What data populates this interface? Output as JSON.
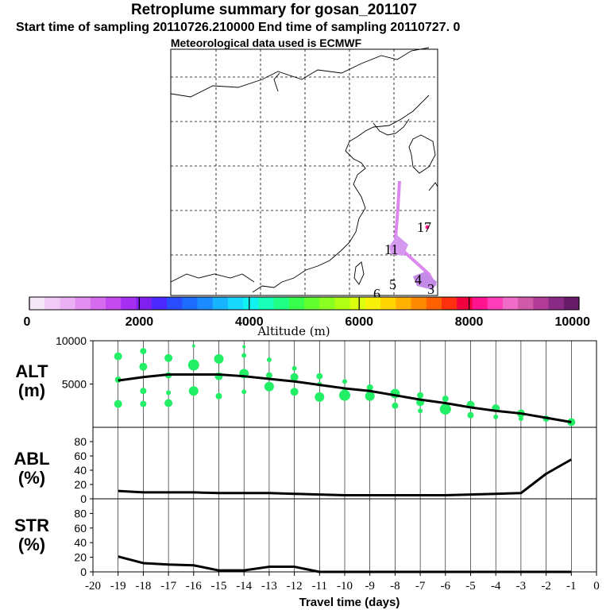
{
  "header": {
    "title": "Retroplume summary for gosan_201107",
    "sampling_line": "Start time of sampling 20110726.210000     End time of sampling 20110727.     0",
    "met_line": "Meteorological data used is ECMWF"
  },
  "colors": {
    "plume": "#dd88ee",
    "dots": "#22ee66",
    "line": "#000000"
  },
  "colorbar": {
    "label": "Altitude (m)",
    "tick_labels": [
      "0",
      "2000",
      "4000",
      "6000",
      "8000",
      "10000"
    ],
    "colors": [
      "#f4e6f7",
      "#f1caf7",
      "#ecb0f4",
      "#e28ef0",
      "#d76bef",
      "#c44af0",
      "#a52ef3",
      "#7f20f0",
      "#4a28ff",
      "#2a4cff",
      "#1d6cff",
      "#1a8cff",
      "#18b4ff",
      "#16d8ff",
      "#10f2f0",
      "#18ffb8",
      "#20ff86",
      "#38ff4c",
      "#64ff2e",
      "#8cff22",
      "#b2ff16",
      "#dcff10",
      "#f8f20a",
      "#ffd400",
      "#ffb000",
      "#ff8a00",
      "#ff6000",
      "#ff3010",
      "#f20040",
      "#ff1490",
      "#ff3cba",
      "#f06cc6",
      "#d05aa8",
      "#b03c98",
      "#8a2c86",
      "#661c66"
    ]
  },
  "map": {
    "labels": [
      "17",
      "11",
      "5",
      "6",
      "4",
      "3"
    ]
  },
  "chart_data": [
    {
      "type": "line",
      "panel": "ALT",
      "ylabel": "ALT\n(m)",
      "ylim": [
        0,
        10000
      ],
      "xlim": [
        -20,
        0
      ],
      "tick_labels": [
        "10000",
        "5000"
      ],
      "x": [
        -19,
        -18,
        -17,
        -16,
        -15,
        -14,
        -13,
        -12,
        -11,
        -10,
        -9,
        -8,
        -7,
        -6,
        -5,
        -4,
        -3,
        -2,
        -1
      ],
      "series": [
        {
          "name": "mean altitude",
          "values": [
            5400,
            5800,
            6100,
            6100,
            6100,
            5900,
            5600,
            5300,
            4900,
            4500,
            4200,
            3700,
            3200,
            2800,
            2300,
            1900,
            1600,
            1100,
            600
          ]
        }
      ],
      "clusters": [
        {
          "x": -19,
          "y": 8200,
          "s": 5
        },
        {
          "x": -19,
          "y": 5500,
          "s": 4
        },
        {
          "x": -19,
          "y": 2700,
          "s": 5
        },
        {
          "x": -18,
          "y": 8800,
          "s": 4
        },
        {
          "x": -18,
          "y": 7000,
          "s": 5
        },
        {
          "x": -18,
          "y": 4200,
          "s": 4
        },
        {
          "x": -18,
          "y": 2700,
          "s": 4
        },
        {
          "x": -17,
          "y": 8000,
          "s": 5
        },
        {
          "x": -17,
          "y": 6000,
          "s": 4
        },
        {
          "x": -17,
          "y": 4000,
          "s": 3
        },
        {
          "x": -17,
          "y": 2800,
          "s": 5
        },
        {
          "x": -16,
          "y": 9400,
          "s": 2
        },
        {
          "x": -16,
          "y": 7200,
          "s": 7
        },
        {
          "x": -16,
          "y": 4200,
          "s": 6
        },
        {
          "x": -15,
          "y": 7900,
          "s": 6
        },
        {
          "x": -15,
          "y": 5900,
          "s": 5
        },
        {
          "x": -15,
          "y": 3600,
          "s": 4
        },
        {
          "x": -14,
          "y": 9300,
          "s": 2
        },
        {
          "x": -14,
          "y": 8300,
          "s": 3
        },
        {
          "x": -14,
          "y": 6200,
          "s": 6
        },
        {
          "x": -14,
          "y": 4100,
          "s": 3
        },
        {
          "x": -13,
          "y": 7800,
          "s": 3
        },
        {
          "x": -13,
          "y": 6000,
          "s": 4
        },
        {
          "x": -13,
          "y": 4700,
          "s": 6
        },
        {
          "x": -12,
          "y": 6800,
          "s": 3
        },
        {
          "x": -12,
          "y": 5800,
          "s": 5
        },
        {
          "x": -12,
          "y": 4100,
          "s": 5
        },
        {
          "x": -11,
          "y": 5900,
          "s": 4
        },
        {
          "x": -11,
          "y": 5000,
          "s": 3
        },
        {
          "x": -11,
          "y": 3500,
          "s": 6
        },
        {
          "x": -10,
          "y": 5300,
          "s": 3
        },
        {
          "x": -10,
          "y": 4300,
          "s": 3
        },
        {
          "x": -10,
          "y": 3700,
          "s": 7
        },
        {
          "x": -9,
          "y": 4600,
          "s": 4
        },
        {
          "x": -9,
          "y": 3600,
          "s": 6
        },
        {
          "x": -8,
          "y": 3900,
          "s": 6
        },
        {
          "x": -8,
          "y": 2500,
          "s": 4
        },
        {
          "x": -7,
          "y": 3700,
          "s": 4
        },
        {
          "x": -7,
          "y": 2900,
          "s": 5
        },
        {
          "x": -7,
          "y": 1900,
          "s": 3
        },
        {
          "x": -6,
          "y": 3300,
          "s": 4
        },
        {
          "x": -6,
          "y": 2100,
          "s": 7
        },
        {
          "x": -5,
          "y": 2600,
          "s": 5
        },
        {
          "x": -5,
          "y": 1400,
          "s": 4
        },
        {
          "x": -4,
          "y": 2200,
          "s": 5
        },
        {
          "x": -4,
          "y": 1200,
          "s": 3
        },
        {
          "x": -3,
          "y": 1600,
          "s": 5
        },
        {
          "x": -3,
          "y": 1000,
          "s": 3
        },
        {
          "x": -2,
          "y": 1000,
          "s": 4
        },
        {
          "x": -1,
          "y": 600,
          "s": 5
        }
      ]
    },
    {
      "type": "line",
      "panel": "ABL",
      "ylabel": "ABL\n(%)",
      "ylim": [
        0,
        100
      ],
      "xlim": [
        -20,
        0
      ],
      "tick_labels": [
        "0",
        "20",
        "40",
        "60",
        "80"
      ],
      "x": [
        -19,
        -18,
        -17,
        -16,
        -15,
        -14,
        -13,
        -12,
        -11,
        -10,
        -9,
        -8,
        -7,
        -6,
        -5,
        -4,
        -3,
        -2,
        -1
      ],
      "series": [
        {
          "name": "ABL fraction",
          "values": [
            11,
            9,
            9,
            9,
            8,
            8,
            8,
            7,
            6,
            5,
            5,
            5,
            5,
            5,
            6,
            7,
            8,
            35,
            55
          ]
        }
      ]
    },
    {
      "type": "line",
      "panel": "STR",
      "ylabel": "STR\n(%)",
      "ylim": [
        0,
        100
      ],
      "xlim": [
        -20,
        0
      ],
      "xlabel": "Travel time (days)",
      "tick_labels": [
        "0",
        "20",
        "40",
        "60",
        "80"
      ],
      "x_tick_labels": [
        "-20",
        "-19",
        "-18",
        "-17",
        "-16",
        "-15",
        "-14",
        "-13",
        "-12",
        "-11",
        "-10",
        "-9",
        "-8",
        "-7",
        "-6",
        "-5",
        "-4",
        "-3",
        "-2",
        "-1",
        "0"
      ],
      "x": [
        -19,
        -18,
        -17,
        -16,
        -15,
        -14,
        -13,
        -12,
        -11,
        -10,
        -9,
        -8,
        -7,
        -6,
        -5,
        -4,
        -3,
        -2,
        -1
      ],
      "series": [
        {
          "name": "stratospheric fraction",
          "values": [
            21,
            12,
            10,
            9,
            2,
            2,
            7,
            7,
            0,
            0,
            0,
            0,
            0,
            0,
            0,
            0,
            0,
            0,
            0
          ]
        }
      ]
    }
  ]
}
